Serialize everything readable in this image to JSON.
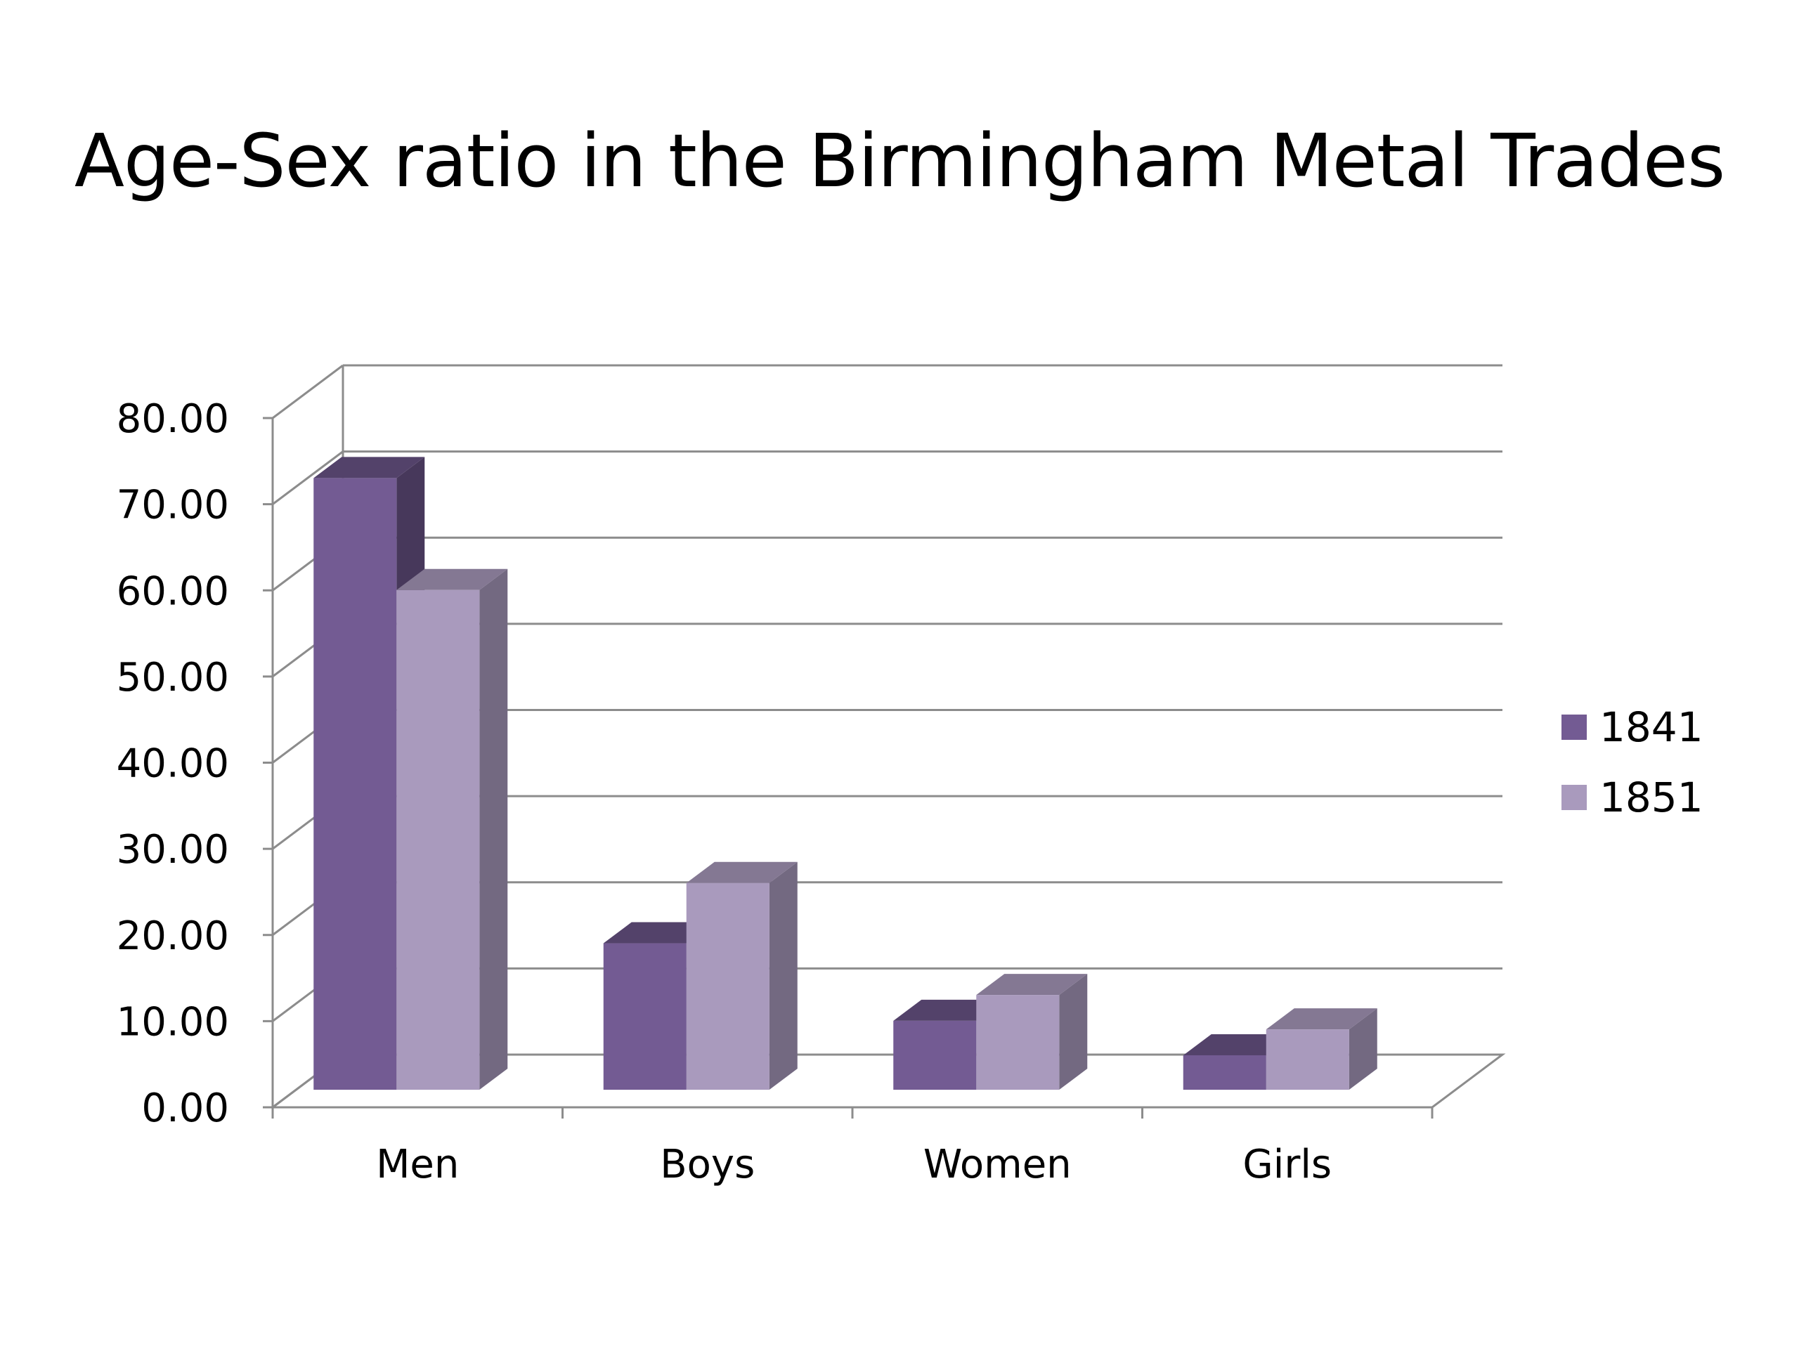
{
  "chart_data": {
    "type": "bar",
    "title": "Age-Sex ratio in the Birmingham Metal Trades",
    "xlabel": "",
    "ylabel": "",
    "categories": [
      "Men",
      "Boys",
      "Women",
      "Girls"
    ],
    "series": [
      {
        "name": "1841",
        "values": [
          71.0,
          17.0,
          8.0,
          4.0
        ],
        "color": "#735b93"
      },
      {
        "name": "1851",
        "values": [
          58.0,
          24.0,
          11.0,
          7.0
        ],
        "color": "#a99abd"
      }
    ],
    "ylim": [
      0,
      80
    ],
    "yticks": [
      "0.00",
      "10.00",
      "20.00",
      "30.00",
      "40.00",
      "50.00",
      "60.00",
      "70.00",
      "80.00"
    ],
    "grid": true,
    "legend": "right",
    "style": "3d-clustered-column"
  }
}
